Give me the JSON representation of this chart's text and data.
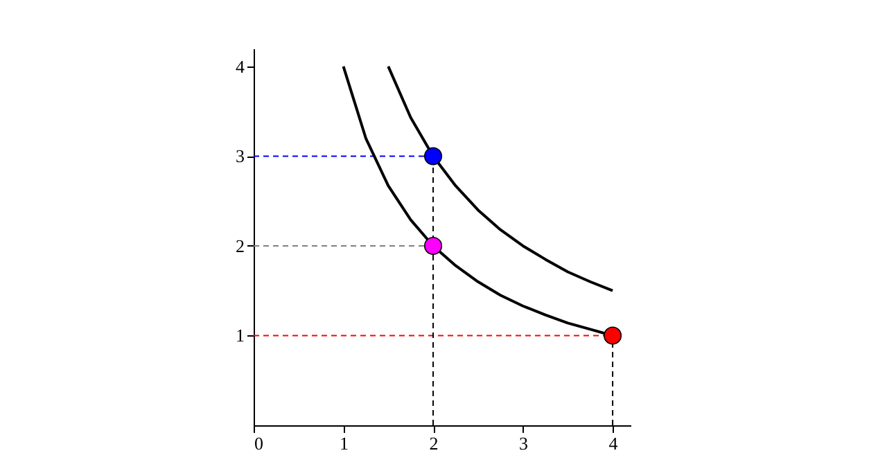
{
  "chart_data": {
    "type": "line",
    "xlim": [
      0,
      4.2
    ],
    "ylim": [
      0,
      4.2
    ],
    "xticks": [
      0,
      1,
      2,
      3,
      4
    ],
    "yticks": [
      1,
      2,
      3,
      4
    ],
    "grid": false,
    "series": [
      {
        "color": "#0000ff",
        "line_style": "dashed",
        "x": [
          0,
          2
        ],
        "values": [
          3,
          3
        ]
      },
      {
        "color": "#808080",
        "line_style": "dashed",
        "x": [
          0,
          2
        ],
        "values": [
          2,
          2
        ]
      },
      {
        "color": "#ff0000",
        "line_style": "dashed",
        "x": [
          0,
          4
        ],
        "values": [
          1,
          1
        ]
      },
      {
        "color": "#000000",
        "line_style": "dashed",
        "x": [
          2,
          2
        ],
        "values": [
          0,
          3
        ]
      },
      {
        "color": "#000000",
        "line_style": "dashed",
        "x": [
          4,
          4
        ],
        "values": [
          0,
          1
        ]
      },
      {
        "color": "#000000",
        "line_style": "solid",
        "x": [
          1,
          1.25,
          1.5,
          1.75,
          2,
          2.25,
          2.5,
          2.75,
          3,
          3.25,
          3.5,
          3.75,
          4
        ],
        "values": [
          4,
          3.2,
          2.67,
          2.29,
          2,
          1.78,
          1.6,
          1.45,
          1.33,
          1.23,
          1.14,
          1.07,
          1
        ]
      },
      {
        "color": "#000000",
        "line_style": "solid",
        "x": [
          1.5,
          1.75,
          2,
          2.25,
          2.5,
          2.75,
          3,
          3.25,
          3.5,
          3.75,
          4
        ],
        "values": [
          4,
          3.43,
          3,
          2.67,
          2.4,
          2.18,
          2,
          1.85,
          1.71,
          1.6,
          1.5
        ]
      },
      {
        "type": "scatter",
        "marker": "circle",
        "x": [
          2,
          2,
          4
        ],
        "values": [
          3,
          2,
          1
        ],
        "colors": [
          "#0000ff",
          "#ff00ff",
          "#ff0000"
        ]
      }
    ]
  }
}
